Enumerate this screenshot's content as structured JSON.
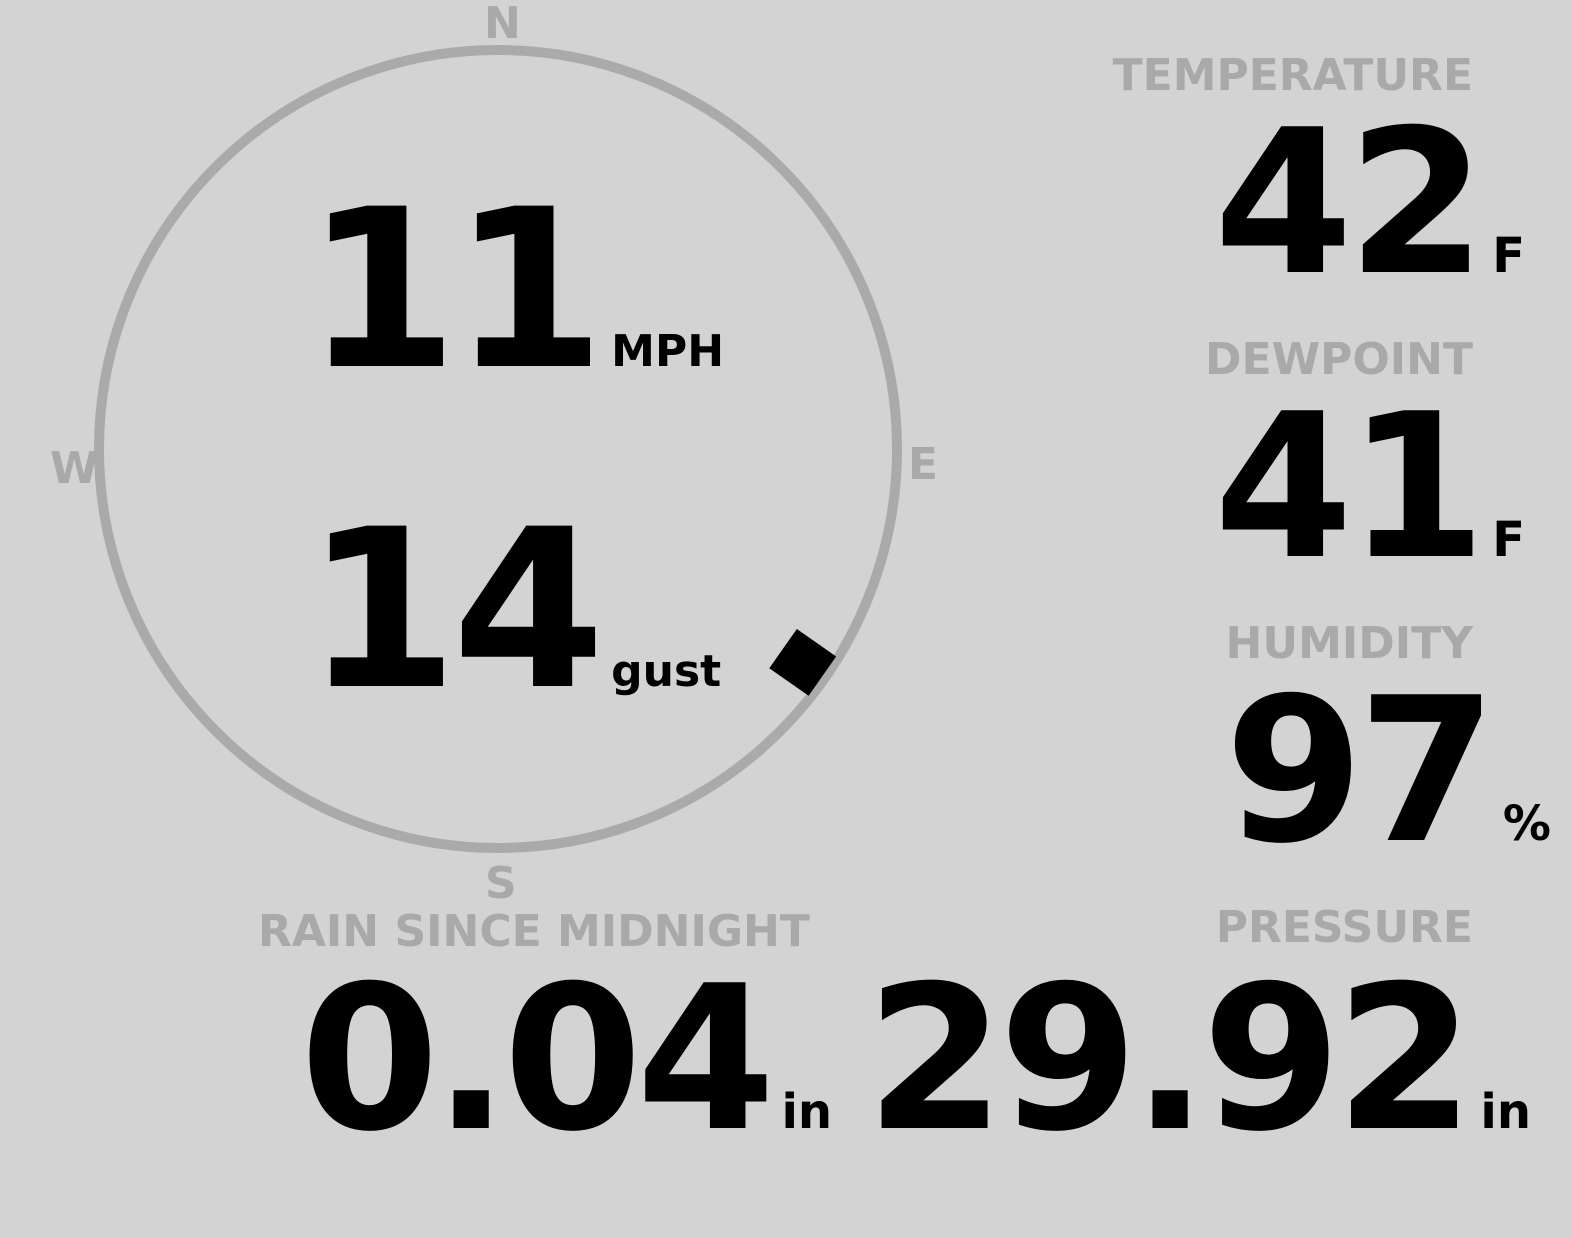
{
  "compass": {
    "north": "N",
    "south": "S",
    "east": "E",
    "west": "W",
    "direction_deg": 125,
    "ring_color": "#aaaaaa",
    "marker_color": "#000000"
  },
  "wind": {
    "speed": "11",
    "speed_unit": "MPH",
    "gust": "14",
    "gust_unit": "gust"
  },
  "temperature": {
    "label": "TEMPERATURE",
    "value": "42",
    "unit": "F"
  },
  "dewpoint": {
    "label": "DEWPOINT",
    "value": "41",
    "unit": "F"
  },
  "humidity": {
    "label": "HUMIDITY",
    "value": "97",
    "unit": "%"
  },
  "rain": {
    "label": "RAIN SINCE MIDNIGHT",
    "value": "0.04",
    "unit": "in"
  },
  "pressure": {
    "label": "PRESSURE",
    "value": "29.92",
    "unit": "in"
  },
  "colors": {
    "background": "#d3d3d3",
    "label": "#a9a9a9",
    "value": "#000000"
  }
}
